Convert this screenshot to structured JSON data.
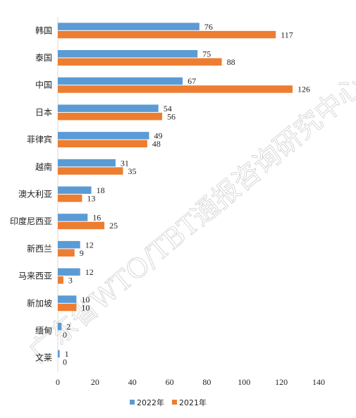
{
  "chart_data": {
    "type": "bar",
    "orientation": "horizontal",
    "categories": [
      "韩国",
      "泰国",
      "中国",
      "日本",
      "菲律宾",
      "越南",
      "澳大利亚",
      "印度尼西亚",
      "新西兰",
      "马来西亚",
      "新加坡",
      "缅甸",
      "文莱"
    ],
    "series": [
      {
        "name": "2022年",
        "color": "#5b9bd5",
        "values": [
          76,
          75,
          67,
          54,
          49,
          31,
          18,
          16,
          12,
          12,
          10,
          2,
          1
        ]
      },
      {
        "name": "2021年",
        "color": "#ed7d31",
        "values": [
          117,
          88,
          126,
          56,
          48,
          35,
          13,
          25,
          9,
          3,
          10,
          0,
          0
        ]
      }
    ],
    "xlim": [
      0,
      140
    ],
    "xticks": [
      "0",
      "20",
      "40",
      "60",
      "80",
      "100",
      "120",
      "140"
    ],
    "grid": false,
    "legend_position": "bottom",
    "watermark": "广东省WTO/TBT通报咨询研究中心"
  }
}
